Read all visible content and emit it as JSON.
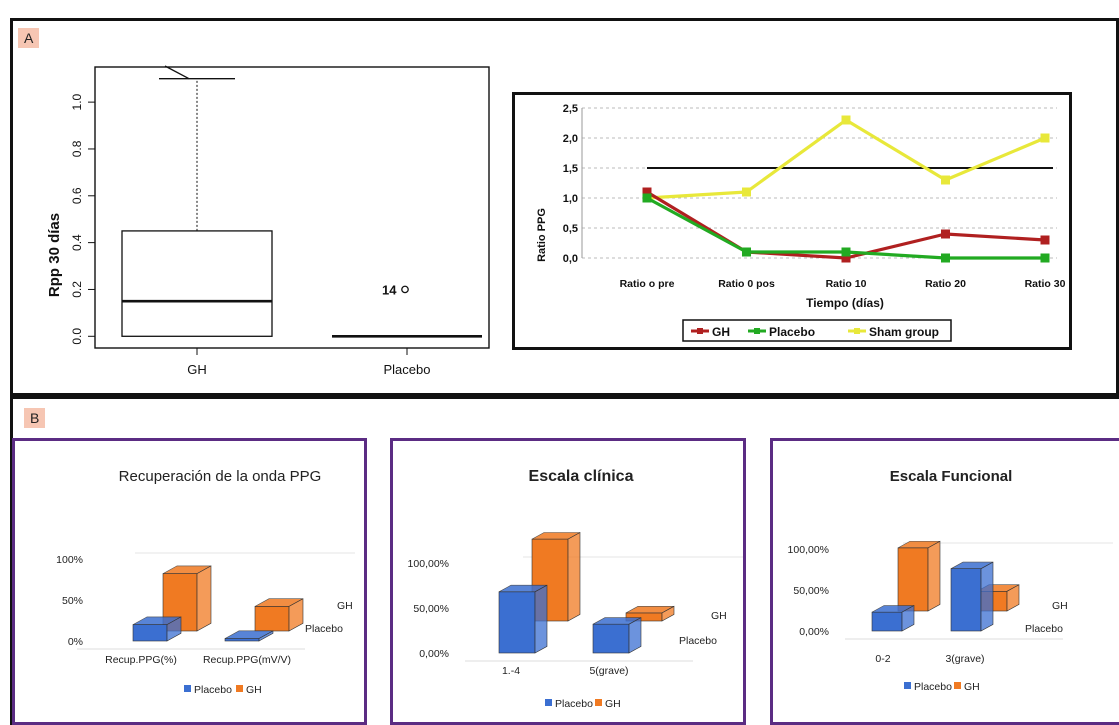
{
  "panels": {
    "a_label": "A",
    "b_label": "B"
  },
  "colors": {
    "frame": "#111111",
    "b_frame": "#5b2c83",
    "gh_line": "#b02020",
    "placebo_line": "#22aa22",
    "sham_line": "#e8e83a",
    "bar_blue": "#3b6fd1",
    "bar_orange": "#f07a22",
    "label_bg": "#f6c6b3"
  },
  "chart_data": [
    {
      "type": "box",
      "xlabel": "",
      "ylabel": "Rpp 30 días",
      "categories": [
        "GH",
        "Placebo"
      ],
      "ylim": [
        -0.05,
        1.15
      ],
      "yticks": [
        "0.0",
        "0.2",
        "0.4",
        "0.6",
        "0.8",
        "1.0"
      ],
      "boxes": [
        {
          "name": "GH",
          "q1": 0.0,
          "median": 0.15,
          "q3": 0.45,
          "whisker_low": 0.0,
          "whisker_high": 1.1
        },
        {
          "name": "Placebo",
          "q1": 0.0,
          "median": 0.0,
          "q3": 0.0,
          "whisker_low": 0.0,
          "whisker_high": 0.0,
          "outlier": {
            "label": "14",
            "value": 0.2
          }
        }
      ]
    },
    {
      "type": "line",
      "xlabel": "Tiempo (días)",
      "ylabel": "Ratio PPG",
      "categories": [
        "Ratio o pre",
        "Ratio 0 pos",
        "Ratio 10",
        "Ratio 20",
        "Ratio 30"
      ],
      "ylim": [
        0,
        2.5
      ],
      "yticks": [
        "0,0",
        "0,5",
        "1,0",
        "1,5",
        "2,0",
        "2,5"
      ],
      "reference_line": 1.5,
      "grid": true,
      "legend": "bottom",
      "series": [
        {
          "name": "GH",
          "values": [
            1.1,
            0.1,
            0.0,
            0.4,
            0.3
          ]
        },
        {
          "name": "Placebo",
          "values": [
            1.0,
            0.1,
            0.1,
            0.0,
            0.0
          ]
        },
        {
          "name": "Sham group",
          "values": [
            1.0,
            1.1,
            2.3,
            1.3,
            2.0
          ]
        }
      ]
    },
    {
      "type": "bar",
      "title": "Recuperación de la onda  PPG",
      "categories": [
        "Recup.PPG(%)",
        "Recup.PPG(mV/V)"
      ],
      "ylim": [
        0,
        100
      ],
      "yticks": [
        "0%",
        "50%",
        "100%"
      ],
      "depth_labels": [
        "GH",
        "Placebo"
      ],
      "legend": "bottom",
      "series": [
        {
          "name": "Placebo",
          "values": [
            20,
            3
          ]
        },
        {
          "name": "GH",
          "values": [
            70,
            30
          ]
        }
      ]
    },
    {
      "type": "bar",
      "title": "Escala clínica",
      "categories": [
        "1.-4",
        "5(grave)"
      ],
      "ylim": [
        0,
        100
      ],
      "yticks": [
        "0,00%",
        "50,00%",
        "100,00%"
      ],
      "depth_labels": [
        "GH",
        "Placebo"
      ],
      "legend": "bottom",
      "series": [
        {
          "name": "Placebo",
          "values": [
            68,
            32
          ]
        },
        {
          "name": "GH",
          "values": [
            91,
            9
          ]
        }
      ]
    },
    {
      "type": "bar",
      "title": "Escala Funcional",
      "categories": [
        "0-2",
        "3(grave)"
      ],
      "ylim": [
        0,
        100
      ],
      "yticks": [
        "0,00%",
        "50,00%",
        "100,00%"
      ],
      "depth_labels": [
        "GH",
        "Placebo"
      ],
      "legend": "bottom",
      "series": [
        {
          "name": "Placebo",
          "values": [
            23,
            76
          ]
        },
        {
          "name": "GH",
          "values": [
            77,
            24
          ]
        }
      ]
    }
  ]
}
